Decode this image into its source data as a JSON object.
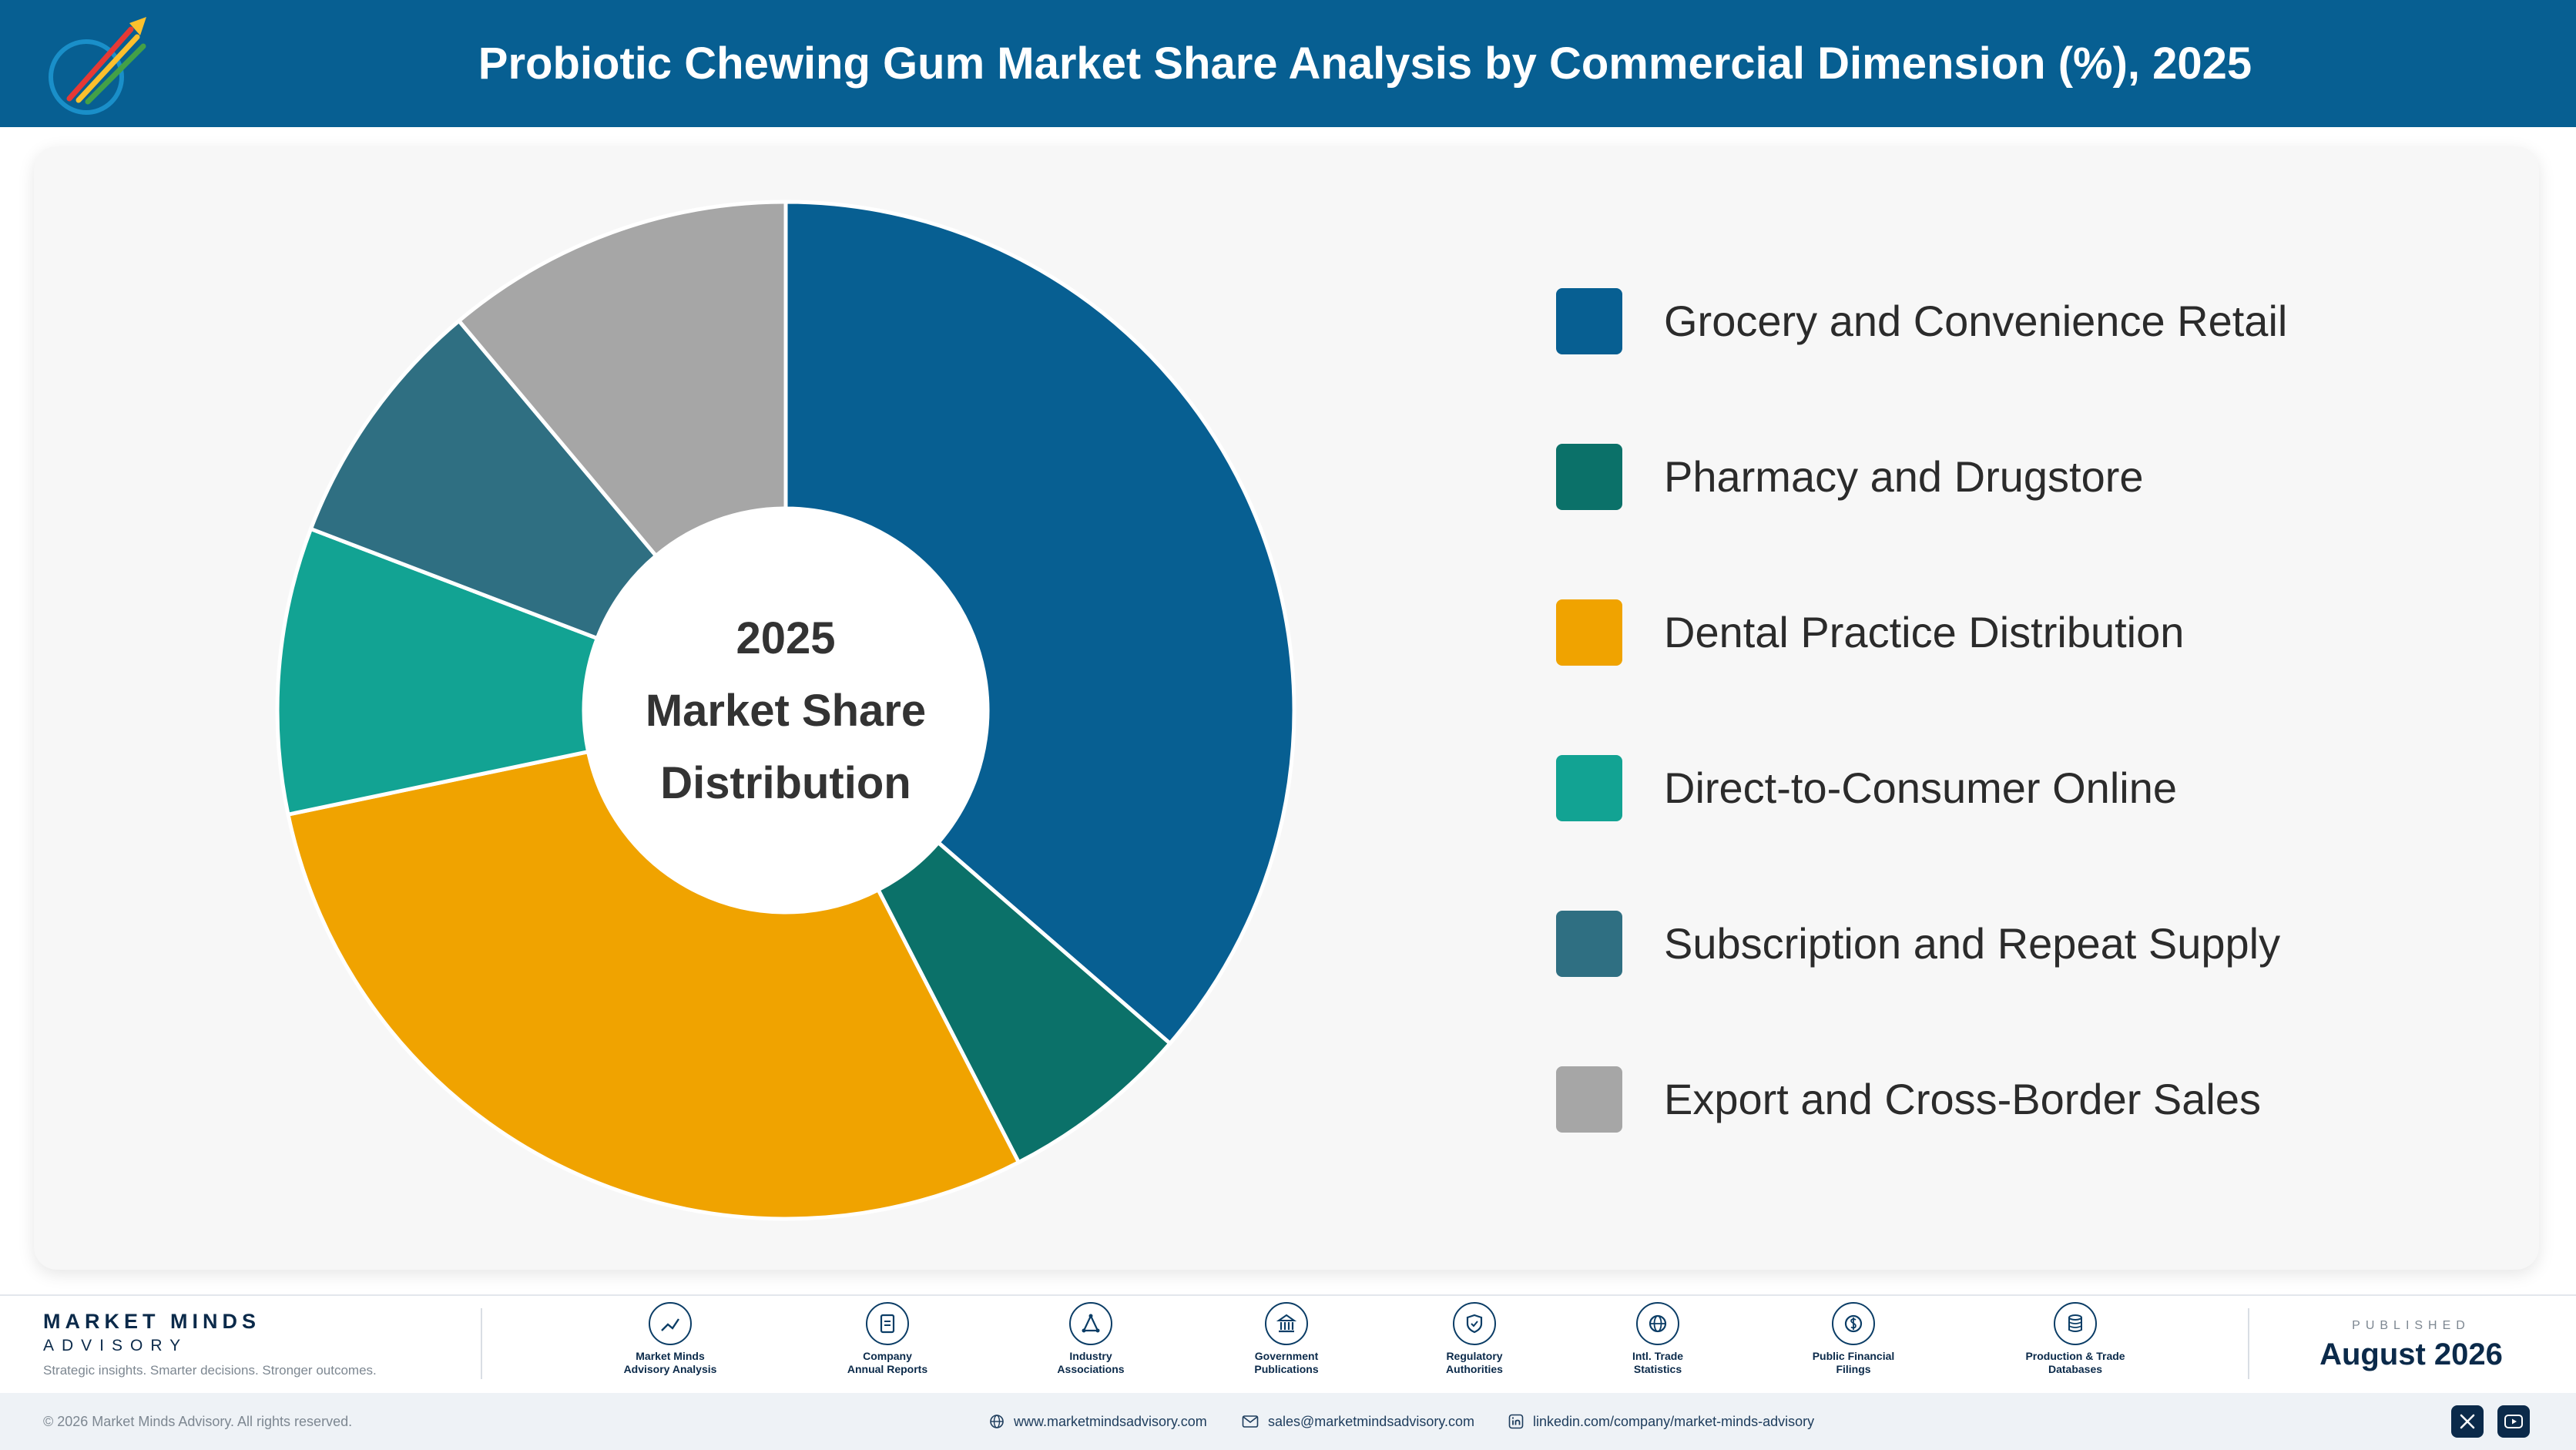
{
  "header": {
    "title": "Probiotic Chewing Gum Market Share Analysis by Commercial Dimension (%), 2025",
    "logo_icon": "rocket-logo-icon"
  },
  "chart_data": {
    "type": "pie",
    "variant": "donut",
    "title": "Probiotic Chewing Gum Market Share Analysis by Commercial Dimension (%), 2025",
    "center_label": [
      "2025",
      "Market Share",
      "Distribution"
    ],
    "categories": [
      "Grocery and Convenience Retail",
      "Pharmacy and Drugstore",
      "Dental Practice Distribution",
      "Direct-to-Consumer Online",
      "Subscription and Repeat Supply",
      "Export and Cross-Border Sales"
    ],
    "values": [
      36,
      6,
      29,
      9,
      8,
      11
    ],
    "colors": [
      "#075f92",
      "#0b7169",
      "#f0a300",
      "#12a393",
      "#2f6f82",
      "#a6a6a6"
    ],
    "legend_position": "right",
    "start_angle": "top",
    "direction": "clockwise"
  },
  "footer": {
    "brand_name": "MARKET MINDS",
    "brand_sub": "ADVISORY",
    "brand_tagline": "Strategic insights. Smarter decisions. Stronger outcomes.",
    "sources": [
      {
        "line1": "Market Minds",
        "line2": "Advisory Analysis",
        "icon": "trend-chart-icon"
      },
      {
        "line1": "Company",
        "line2": "Annual Reports",
        "icon": "document-icon"
      },
      {
        "line1": "Industry",
        "line2": "Associations",
        "icon": "network-icon"
      },
      {
        "line1": "Government",
        "line2": "Publications",
        "icon": "building-icon"
      },
      {
        "line1": "Regulatory",
        "line2": "Authorities",
        "icon": "shield-icon"
      },
      {
        "line1": "Intl. Trade",
        "line2": "Statistics",
        "icon": "globe-icon"
      },
      {
        "line1": "Public Financial",
        "line2": "Filings",
        "icon": "currency-icon"
      },
      {
        "line1": "Production & Trade",
        "line2": "Databases",
        "icon": "database-icon"
      }
    ],
    "published_label": "PUBLISHED",
    "published_date": "August 2026"
  },
  "bottombar": {
    "copyright": "© 2026 Market Minds Advisory. All rights reserved.",
    "website": "www.marketmindsadvisory.com",
    "email": "sales@marketmindsadvisory.com",
    "linkedin": "linkedin.com/company/market-minds-advisory"
  }
}
